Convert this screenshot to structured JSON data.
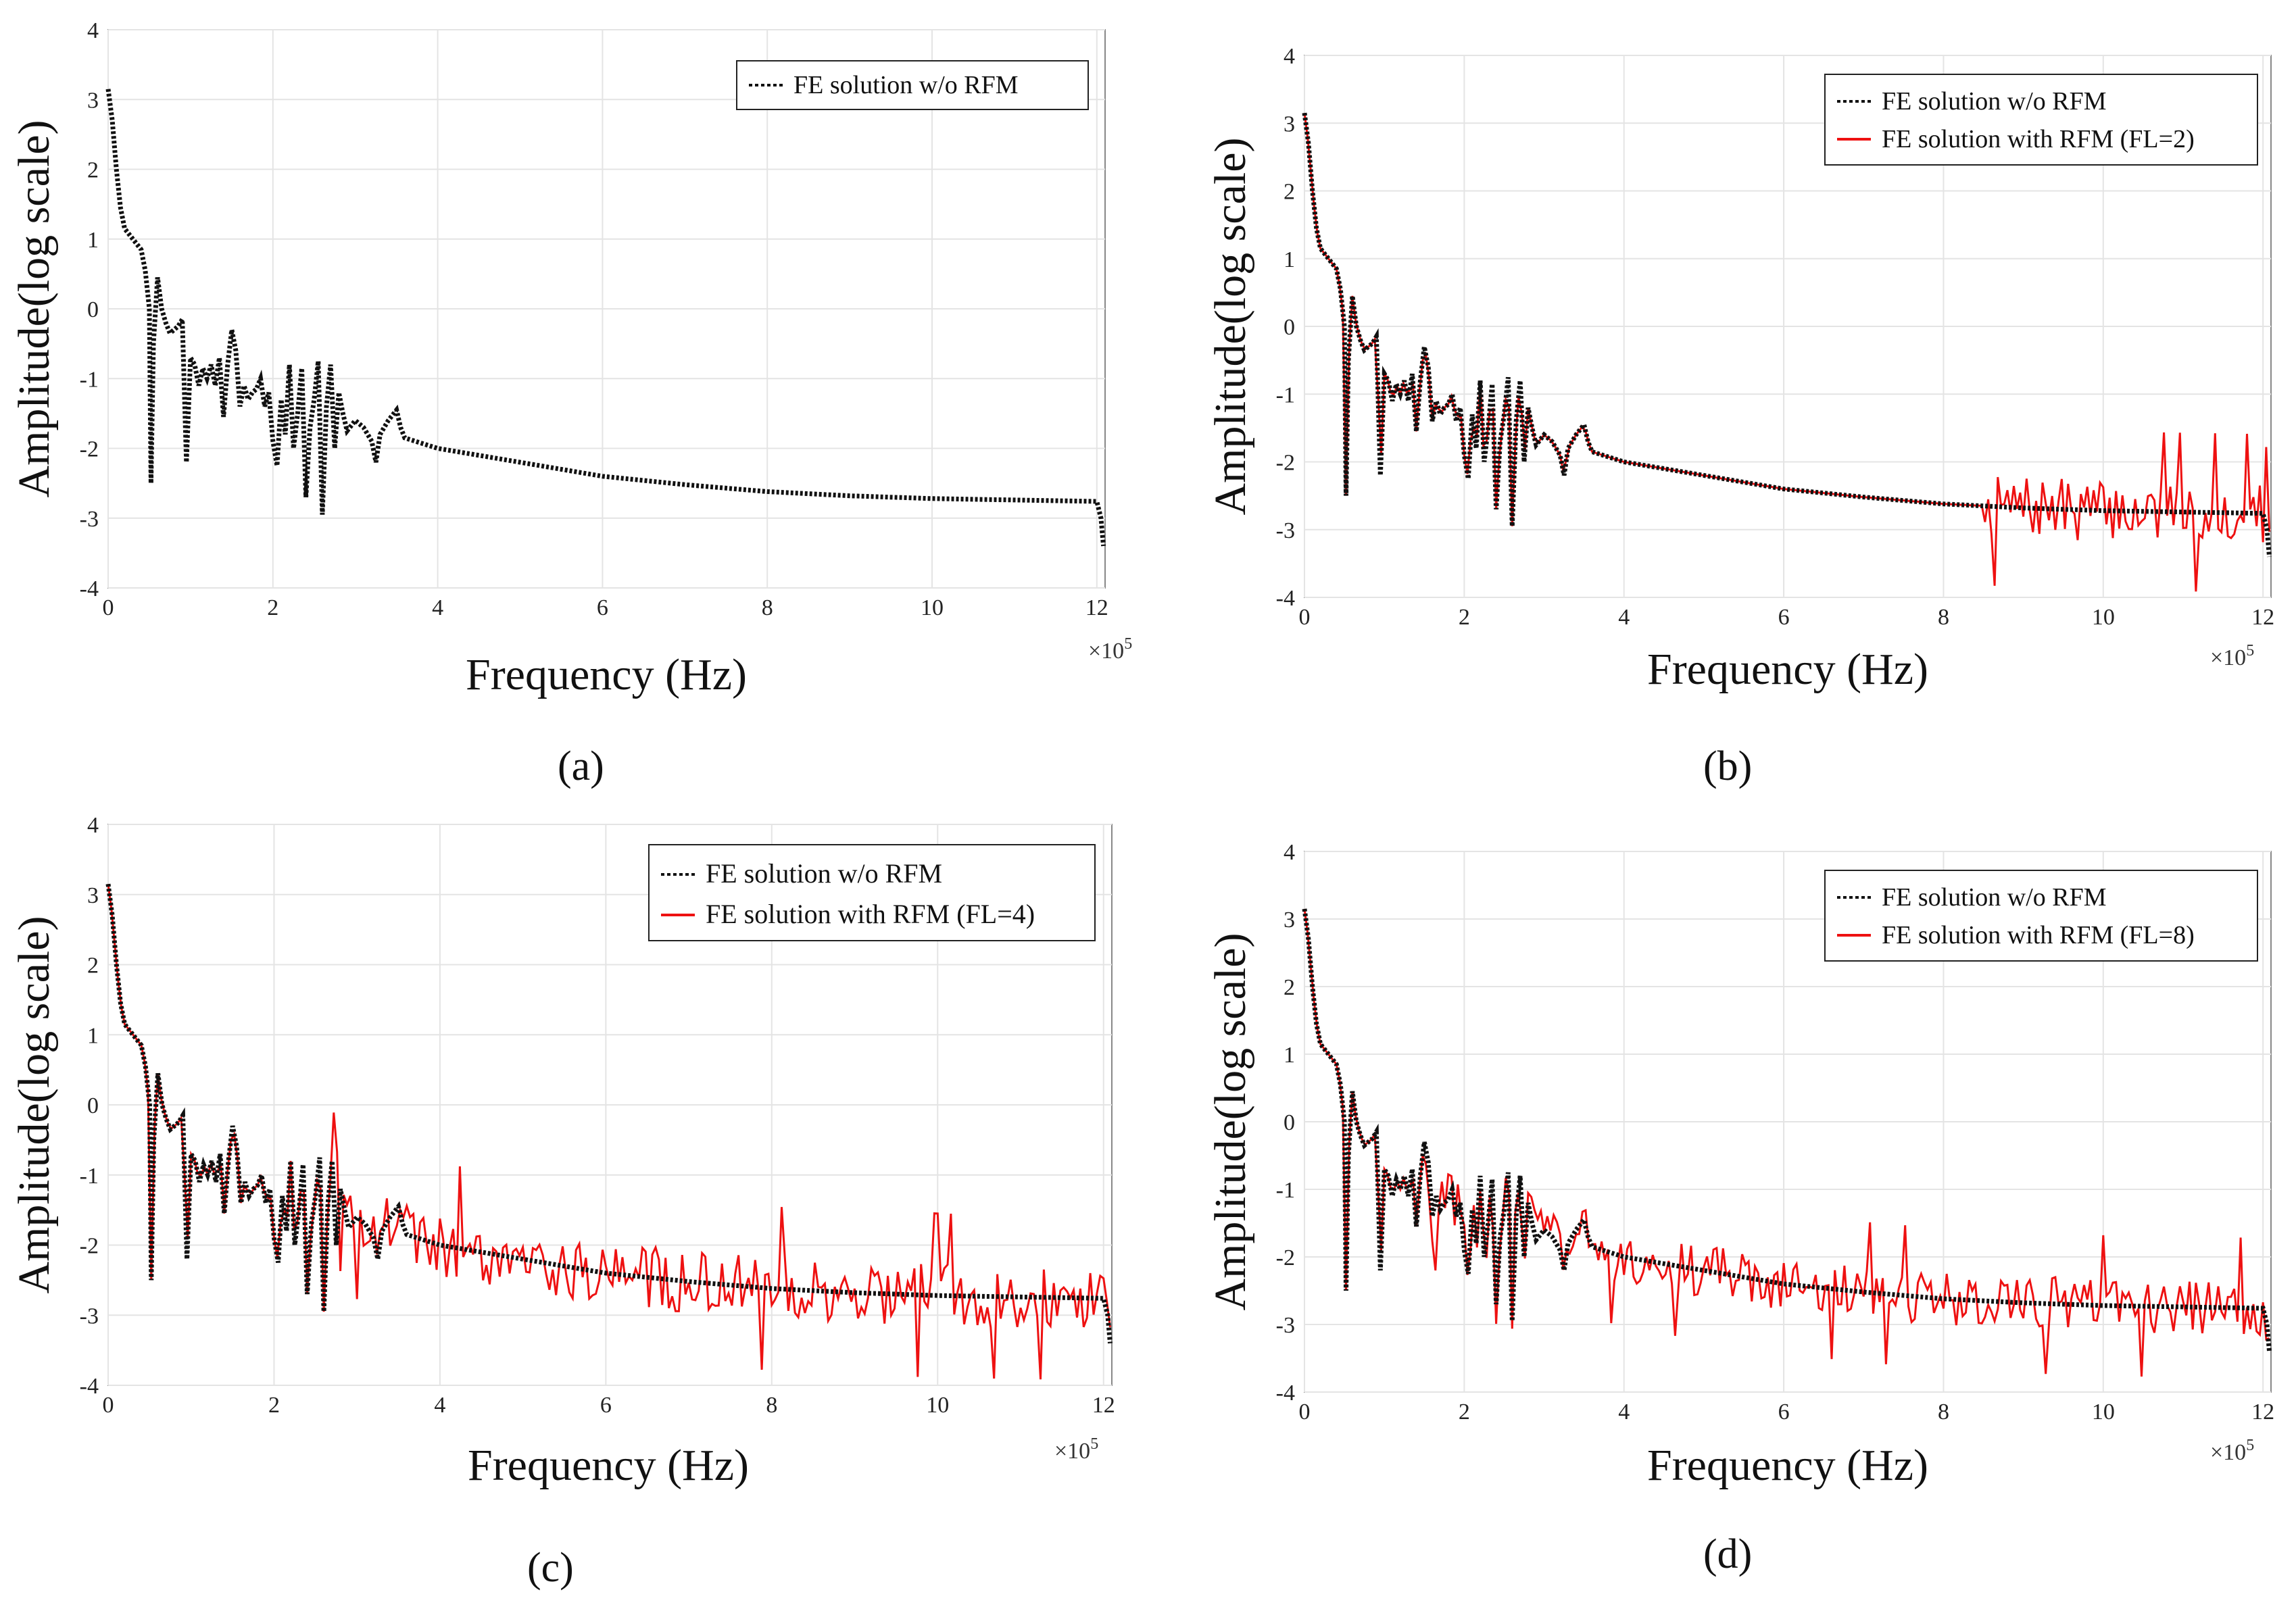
{
  "x_exponent_label": "×10",
  "x_exponent_power": "5",
  "chart_data": [
    {
      "panel": "(a)",
      "type": "line",
      "xlabel": "Frequency (Hz)",
      "ylabel": "Amplitude(log scale)",
      "xlim": [
        0,
        12.1
      ],
      "ylim": [
        -4,
        4
      ],
      "x_scale_note": "×10^5",
      "xticks": [
        0,
        2,
        4,
        6,
        8,
        10,
        12
      ],
      "yticks": [
        -4,
        -3,
        -2,
        -1,
        0,
        1,
        2,
        3,
        4
      ],
      "grid": true,
      "legend_position": "top-right",
      "series": [
        {
          "name": "FE solution w/o RFM",
          "color": "#111111",
          "style": "dotted",
          "kind": "baseline"
        }
      ]
    },
    {
      "panel": "(b)",
      "type": "line",
      "xlabel": "Frequency (Hz)",
      "ylabel": "Amplitude(log scale)",
      "xlim": [
        0,
        12.1
      ],
      "ylim": [
        -4,
        4
      ],
      "x_scale_note": "×10^5",
      "xticks": [
        0,
        2,
        4,
        6,
        8,
        10,
        12
      ],
      "yticks": [
        -4,
        -3,
        -2,
        -1,
        0,
        1,
        2,
        3,
        4
      ],
      "grid": true,
      "legend_position": "top-right",
      "series": [
        {
          "name": "FE solution w/o RFM",
          "color": "#111111",
          "style": "dotted",
          "kind": "baseline"
        },
        {
          "name": "FE solution with RFM (FL=2)",
          "color": "#ee1111",
          "style": "solid",
          "kind": "rfm",
          "noise_start": 8.5,
          "amp": 0.45,
          "seed": 7
        }
      ]
    },
    {
      "panel": "(c)",
      "type": "line",
      "xlabel": "Frequency (Hz)",
      "ylabel": "Amplitude(log scale)",
      "xlim": [
        0,
        12.1
      ],
      "ylim": [
        -4,
        4
      ],
      "x_scale_note": "×10^5",
      "xticks": [
        0,
        2,
        4,
        6,
        8,
        10,
        12
      ],
      "yticks": [
        -4,
        -3,
        -2,
        -1,
        0,
        1,
        2,
        3,
        4
      ],
      "grid": true,
      "legend_position": "top-right",
      "series": [
        {
          "name": "FE solution w/o RFM",
          "color": "#111111",
          "style": "dotted",
          "kind": "baseline"
        },
        {
          "name": "FE solution with RFM (FL=4)",
          "color": "#ee1111",
          "style": "solid",
          "kind": "rfm",
          "noise_start": 2.7,
          "amp": 0.45,
          "seed": 19
        }
      ]
    },
    {
      "panel": "(d)",
      "type": "line",
      "xlabel": "Frequency (Hz)",
      "ylabel": "Amplitude(log scale)",
      "xlim": [
        0,
        12.1
      ],
      "ylim": [
        -4,
        4
      ],
      "x_scale_note": "×10^5",
      "xticks": [
        0,
        2,
        4,
        6,
        8,
        10,
        12
      ],
      "yticks": [
        -4,
        -3,
        -2,
        -1,
        0,
        1,
        2,
        3,
        4
      ],
      "grid": true,
      "legend_position": "top-right",
      "series": [
        {
          "name": "FE solution w/o RFM",
          "color": "#111111",
          "style": "dotted",
          "kind": "baseline"
        },
        {
          "name": "FE solution with RFM (FL=8)",
          "color": "#ee1111",
          "style": "solid",
          "kind": "rfm",
          "noise_start": 1.5,
          "amp": 0.4,
          "seed": 31
        }
      ]
    }
  ],
  "baseline_points": [
    [
      0.0,
      3.15
    ],
    [
      0.05,
      2.7
    ],
    [
      0.1,
      2.0
    ],
    [
      0.15,
      1.45
    ],
    [
      0.2,
      1.15
    ],
    [
      0.3,
      1.0
    ],
    [
      0.4,
      0.85
    ],
    [
      0.45,
      0.55
    ],
    [
      0.5,
      0.0
    ],
    [
      0.52,
      -2.5
    ],
    [
      0.55,
      -0.5
    ],
    [
      0.6,
      0.45
    ],
    [
      0.65,
      0.0
    ],
    [
      0.7,
      -0.2
    ],
    [
      0.75,
      -0.35
    ],
    [
      0.8,
      -0.3
    ],
    [
      0.85,
      -0.25
    ],
    [
      0.9,
      -0.15
    ],
    [
      0.95,
      -2.2
    ],
    [
      1.0,
      -0.7
    ],
    [
      1.05,
      -0.8
    ],
    [
      1.1,
      -1.1
    ],
    [
      1.15,
      -0.85
    ],
    [
      1.2,
      -1.0
    ],
    [
      1.25,
      -0.8
    ],
    [
      1.3,
      -1.1
    ],
    [
      1.35,
      -0.7
    ],
    [
      1.4,
      -1.55
    ],
    [
      1.45,
      -0.8
    ],
    [
      1.5,
      -0.3
    ],
    [
      1.55,
      -0.6
    ],
    [
      1.6,
      -1.4
    ],
    [
      1.65,
      -1.1
    ],
    [
      1.7,
      -1.3
    ],
    [
      1.75,
      -1.2
    ],
    [
      1.8,
      -1.15
    ],
    [
      1.85,
      -1.0
    ],
    [
      1.9,
      -1.4
    ],
    [
      1.95,
      -1.2
    ],
    [
      2.0,
      -1.9
    ],
    [
      2.05,
      -2.25
    ],
    [
      2.1,
      -1.3
    ],
    [
      2.15,
      -1.8
    ],
    [
      2.2,
      -0.8
    ],
    [
      2.25,
      -2.0
    ],
    [
      2.3,
      -1.5
    ],
    [
      2.35,
      -0.85
    ],
    [
      2.4,
      -2.7
    ],
    [
      2.45,
      -1.7
    ],
    [
      2.5,
      -1.3
    ],
    [
      2.55,
      -0.75
    ],
    [
      2.6,
      -2.95
    ],
    [
      2.65,
      -1.4
    ],
    [
      2.7,
      -0.8
    ],
    [
      2.75,
      -2.0
    ],
    [
      2.8,
      -1.2
    ],
    [
      2.85,
      -1.5
    ],
    [
      2.9,
      -1.75
    ],
    [
      3.0,
      -1.6
    ],
    [
      3.1,
      -1.7
    ],
    [
      3.2,
      -1.9
    ],
    [
      3.25,
      -2.2
    ],
    [
      3.3,
      -1.8
    ],
    [
      3.4,
      -1.6
    ],
    [
      3.5,
      -1.45
    ],
    [
      3.55,
      -1.7
    ],
    [
      3.6,
      -1.85
    ],
    [
      4.0,
      -2.0
    ],
    [
      5.0,
      -2.2
    ],
    [
      6.0,
      -2.4
    ],
    [
      7.0,
      -2.52
    ],
    [
      8.0,
      -2.62
    ],
    [
      9.0,
      -2.68
    ],
    [
      10.0,
      -2.72
    ],
    [
      11.0,
      -2.74
    ],
    [
      12.0,
      -2.76
    ],
    [
      12.05,
      -3.0
    ],
    [
      12.08,
      -3.4
    ]
  ]
}
